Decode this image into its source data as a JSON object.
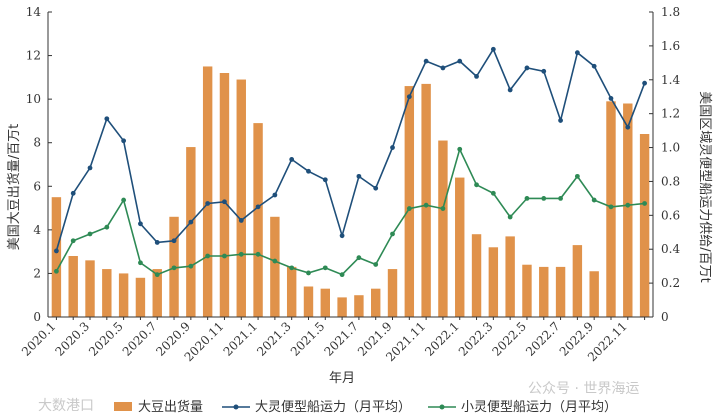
{
  "chart_data": {
    "type": "bar+line",
    "xlabel": "年月",
    "ylabel_left": "美国大豆出货量/百万t",
    "ylabel_right": "美国区域灵便型船运力供给/百万t",
    "ylim_left": [
      0,
      14
    ],
    "ylim_right": [
      0,
      1.8
    ],
    "yticks_left": [
      "0",
      "2",
      "4",
      "6",
      "8",
      "10",
      "12",
      "14"
    ],
    "yticks_right": [
      "0",
      "0.2",
      "0.4",
      "0.6",
      "0.8",
      "1.0",
      "1.2",
      "1.4",
      "1.6",
      "1.8"
    ],
    "x_tick_labels": [
      "2020.1",
      "2020.3",
      "2020.5",
      "2020.7",
      "2020.9",
      "2020.11",
      "2021.1",
      "2021.3",
      "2021.5",
      "2021.7",
      "2021.9",
      "2021.11",
      "2022.1",
      "2022.3",
      "2022.5",
      "2022.7",
      "2022.9",
      "2022.11"
    ],
    "x": [
      "2020.1",
      "2020.2",
      "2020.3",
      "2020.4",
      "2020.5",
      "2020.6",
      "2020.7",
      "2020.8",
      "2020.9",
      "2020.10",
      "2020.11",
      "2020.12",
      "2021.1",
      "2021.2",
      "2021.3",
      "2021.4",
      "2021.5",
      "2021.6",
      "2021.7",
      "2021.8",
      "2021.9",
      "2021.10",
      "2021.11",
      "2021.12",
      "2022.1",
      "2022.2",
      "2022.3",
      "2022.4",
      "2022.5",
      "2022.6",
      "2022.7",
      "2022.8",
      "2022.9",
      "2022.10",
      "2022.11",
      "2022.12"
    ],
    "series": [
      {
        "name": "大豆出货量",
        "kind": "bar",
        "axis": "left",
        "color": "#e0924a",
        "values": [
          5.5,
          2.8,
          2.6,
          2.2,
          2.0,
          1.8,
          2.2,
          4.6,
          7.8,
          11.5,
          11.2,
          10.9,
          8.9,
          4.6,
          2.3,
          1.4,
          1.3,
          0.9,
          1.0,
          1.3,
          2.2,
          10.6,
          10.7,
          8.1,
          6.4,
          3.8,
          3.2,
          3.7,
          2.4,
          2.3,
          2.3,
          3.3,
          2.1,
          9.9,
          9.8,
          8.4
        ]
      },
      {
        "name": "大灵便型船运力（月平均）",
        "kind": "line",
        "axis": "right",
        "color": "#1f4f7a",
        "values": [
          0.39,
          0.73,
          0.88,
          1.17,
          1.04,
          0.55,
          0.44,
          0.45,
          0.56,
          0.67,
          0.68,
          0.57,
          0.65,
          0.72,
          0.93,
          0.86,
          0.81,
          0.48,
          0.83,
          0.76,
          1.0,
          1.3,
          1.51,
          1.47,
          1.51,
          1.42,
          1.58,
          1.34,
          1.47,
          1.45,
          1.16,
          1.56,
          1.48,
          1.29,
          1.12,
          1.38
        ]
      },
      {
        "name": "小灵便型船运力（月平均）",
        "kind": "line",
        "axis": "right",
        "color": "#2e8a55",
        "values": [
          0.27,
          0.45,
          0.49,
          0.53,
          0.69,
          0.32,
          0.25,
          0.29,
          0.3,
          0.36,
          0.36,
          0.37,
          0.37,
          0.33,
          0.29,
          0.26,
          0.29,
          0.25,
          0.35,
          0.31,
          0.49,
          0.64,
          0.66,
          0.64,
          0.99,
          0.78,
          0.73,
          0.59,
          0.7,
          0.7,
          0.7,
          0.83,
          0.69,
          0.65,
          0.66,
          0.67
        ]
      }
    ],
    "legend_position": "bottom"
  },
  "watermark": {
    "left": "大数港口",
    "right": "公众号 · 世界海运"
  }
}
